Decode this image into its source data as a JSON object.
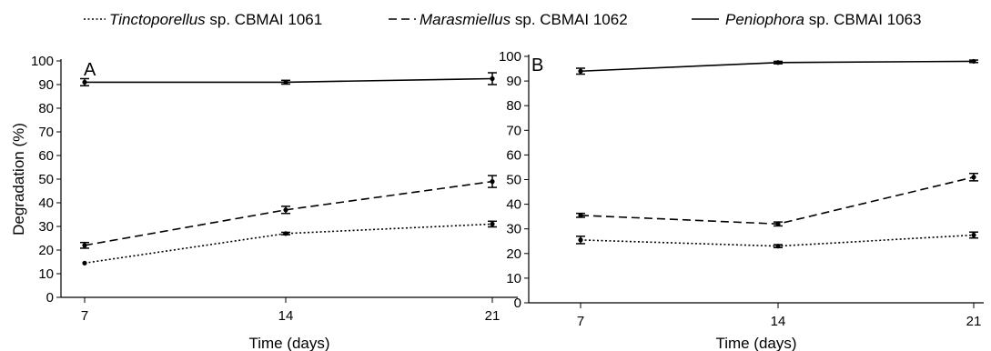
{
  "legend": [
    {
      "genus": "Tinctoporellus",
      "suffix": " sp. CBMAI 1061",
      "style": "dotted"
    },
    {
      "genus": "Marasmiellus",
      "suffix": " sp. CBMAI 1062",
      "style": "dashed"
    },
    {
      "genus": "Peniophora",
      "suffix": " sp. CBMAI 1063",
      "style": "solid"
    }
  ],
  "chart_data": [
    {
      "type": "line",
      "panel_label": "A",
      "xlabel": "Time (days)",
      "ylabel": "Degradation (%)",
      "x": [
        7,
        14,
        21
      ],
      "x_tick_labels": [
        "7",
        "14",
        "21"
      ],
      "ylim": [
        0,
        100
      ],
      "y_tick_labels": [
        "0",
        "10",
        "20",
        "30",
        "40",
        "50",
        "60",
        "70",
        "80",
        "90",
        "100"
      ],
      "grid": false,
      "legend_position": "top",
      "series": [
        {
          "name": "Tinctoporellus sp. CBMAI 1061",
          "line_style": "dotted",
          "values": [
            14.5,
            27,
            31
          ],
          "errors": [
            0,
            0.5,
            1.2
          ]
        },
        {
          "name": "Marasmiellus sp. CBMAI 1062",
          "line_style": "dashed",
          "values": [
            22,
            37,
            49
          ],
          "errors": [
            1.2,
            1.5,
            2.5
          ]
        },
        {
          "name": "Peniophora sp. CBMAI 1063",
          "line_style": "solid",
          "values": [
            91,
            91,
            92.5
          ],
          "errors": [
            1.5,
            0.8,
            2.5
          ]
        }
      ]
    },
    {
      "type": "line",
      "panel_label": "B",
      "xlabel": "Time (days)",
      "ylabel": "",
      "x": [
        7,
        14,
        21
      ],
      "x_tick_labels": [
        "7",
        "14",
        "21"
      ],
      "ylim": [
        0,
        100
      ],
      "y_tick_labels": [
        "0",
        "10",
        "20",
        "30",
        "40",
        "50",
        "60",
        "70",
        "80",
        "90",
        "100"
      ],
      "grid": false,
      "legend_position": "top",
      "series": [
        {
          "name": "Tinctoporellus sp. CBMAI 1061",
          "line_style": "dotted",
          "values": [
            25.5,
            23,
            27.5
          ],
          "errors": [
            1.5,
            0.6,
            1.2
          ]
        },
        {
          "name": "Marasmiellus sp. CBMAI 1062",
          "line_style": "dashed",
          "values": [
            35.5,
            32,
            51
          ],
          "errors": [
            0.8,
            0.8,
            1.5
          ]
        },
        {
          "name": "Peniophora sp. CBMAI 1063",
          "line_style": "solid",
          "values": [
            94,
            97.5,
            98
          ],
          "errors": [
            1.2,
            0.5,
            0.5
          ]
        }
      ]
    }
  ]
}
